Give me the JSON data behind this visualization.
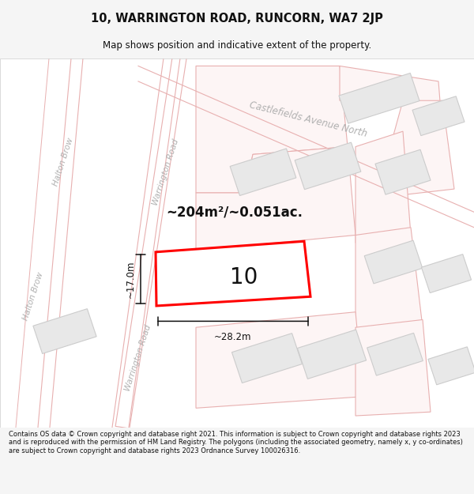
{
  "title": "10, WARRINGTON ROAD, RUNCORN, WA7 2JP",
  "subtitle": "Map shows position and indicative extent of the property.",
  "footer": "Contains OS data © Crown copyright and database right 2021. This information is subject to Crown copyright and database rights 2023 and is reproduced with the permission of HM Land Registry. The polygons (including the associated geometry, namely x, y co-ordinates) are subject to Crown copyright and database rights 2023 Ordnance Survey 100026316.",
  "area_label": "~204m²/~0.051ac.",
  "width_label": "~28.2m",
  "height_label": "~17.0m",
  "plot_number": "10",
  "bg_color": "#f5f5f5",
  "map_bg": "#ffffff",
  "road_line_color": "#e8b0b0",
  "block_fill": "#e8e8e8",
  "block_edge": "#cccccc",
  "plot_outline_fill": "#fdf5f5",
  "plot_outline_edge": "#f0a0a0",
  "main_plot_fill": "#ffffff",
  "main_plot_edge": "#ff0000",
  "road_label_color": "#b0b0b0",
  "dim_color": "#111111",
  "title_color": "#111111",
  "footer_color": "#111111"
}
